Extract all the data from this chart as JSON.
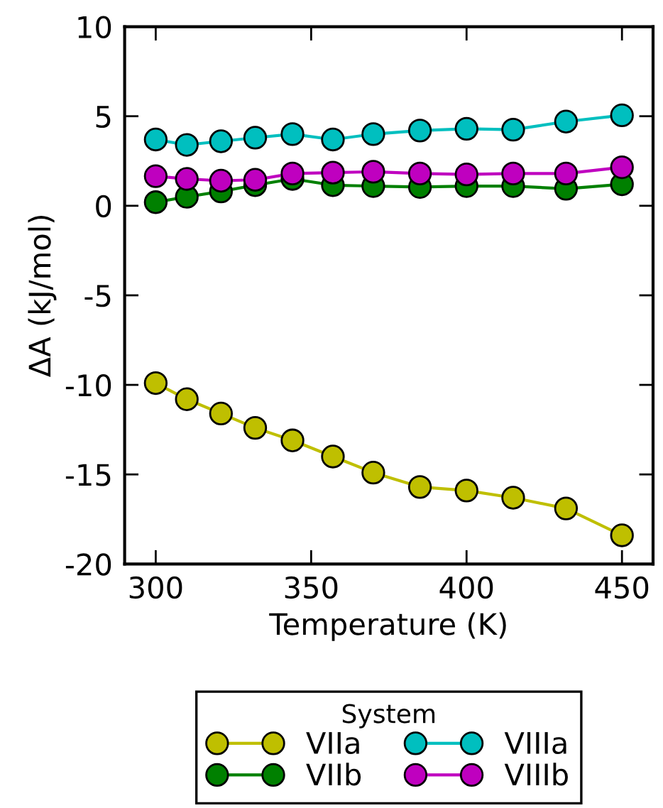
{
  "chart_data": {
    "type": "line",
    "xlabel": "Temperature (K)",
    "ylabel": "ΔA (kJ/mol)",
    "legend_title": "System",
    "x": [
      300,
      310,
      321,
      332,
      344,
      357,
      370,
      385,
      400,
      415,
      432,
      450
    ],
    "series": [
      {
        "name": "VIIa",
        "color": "#bfbf00",
        "values": [
          -9.9,
          -10.8,
          -11.6,
          -12.4,
          -13.1,
          -14.0,
          -14.9,
          -15.7,
          -15.9,
          -16.3,
          -16.9,
          -18.4
        ]
      },
      {
        "name": "VIIb",
        "color": "#008000",
        "values": [
          0.2,
          0.5,
          0.8,
          1.15,
          1.5,
          1.15,
          1.1,
          1.05,
          1.1,
          1.1,
          0.95,
          1.2
        ]
      },
      {
        "name": "VIIIa",
        "color": "#00bfbf",
        "values": [
          3.7,
          3.4,
          3.6,
          3.8,
          4.0,
          3.7,
          4.0,
          4.2,
          4.3,
          4.25,
          4.7,
          5.05
        ]
      },
      {
        "name": "VIIIb",
        "color": "#bf00bf",
        "values": [
          1.65,
          1.5,
          1.4,
          1.45,
          1.8,
          1.85,
          1.9,
          1.8,
          1.75,
          1.8,
          1.8,
          2.15
        ]
      }
    ],
    "xlim": [
      290,
      460
    ],
    "xticks": [
      300,
      350,
      400,
      450
    ],
    "ylim": [
      -20,
      10
    ],
    "yticks": [
      {
        "value": -20,
        "label": "-20"
      },
      {
        "value": -15,
        "label": "-15"
      },
      {
        "value": -10,
        "label": "-10"
      },
      {
        "value": -5,
        "label": "-5"
      },
      0,
      5,
      10
    ],
    "marker": "circle",
    "line_style": "solid",
    "grid": false,
    "legend": "bottom"
  }
}
